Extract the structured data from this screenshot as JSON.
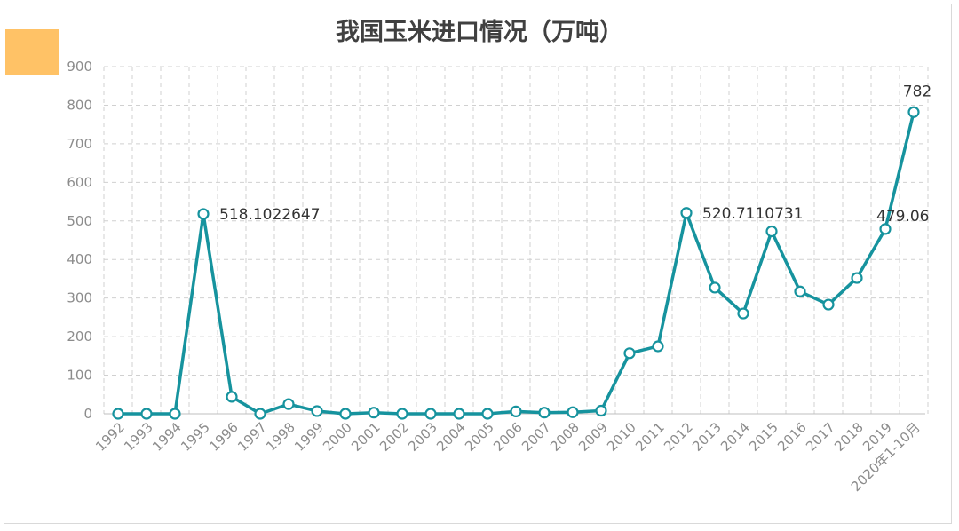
{
  "chart_data": {
    "type": "line",
    "title": "我国玉米进口情况（万吨）",
    "categories": [
      "1992",
      "1993",
      "1994",
      "1995",
      "1996",
      "1997",
      "1998",
      "1999",
      "2000",
      "2001",
      "2002",
      "2003",
      "2004",
      "2005",
      "2006",
      "2007",
      "2008",
      "2009",
      "2010",
      "2011",
      "2012",
      "2013",
      "2014",
      "2015",
      "2016",
      "2017",
      "2018",
      "2019",
      "2020年1-10月"
    ],
    "series": [
      {
        "values": [
          0,
          0,
          0,
          518.1022647,
          44,
          0,
          25,
          7,
          0,
          3,
          0,
          0,
          0,
          0,
          6,
          3,
          4,
          8,
          157,
          175,
          520.7110731,
          327,
          260,
          473,
          317,
          283,
          352,
          479.06,
          782
        ]
      }
    ],
    "data_labels": [
      {
        "index": 3,
        "text": "518.1022647"
      },
      {
        "index": 20,
        "text": "520.7110731"
      },
      {
        "index": 27,
        "text": "479.06"
      },
      {
        "index": 28,
        "text": "782"
      }
    ],
    "ylim": [
      0,
      900
    ],
    "yticks": [
      0,
      100,
      200,
      300,
      400,
      500,
      600,
      700,
      800,
      900
    ],
    "grid": true,
    "colors": {
      "line": "#16939e",
      "marker_fill": "#ffffff",
      "grid": "#d0d0d0",
      "accent": "#ffc266"
    }
  }
}
